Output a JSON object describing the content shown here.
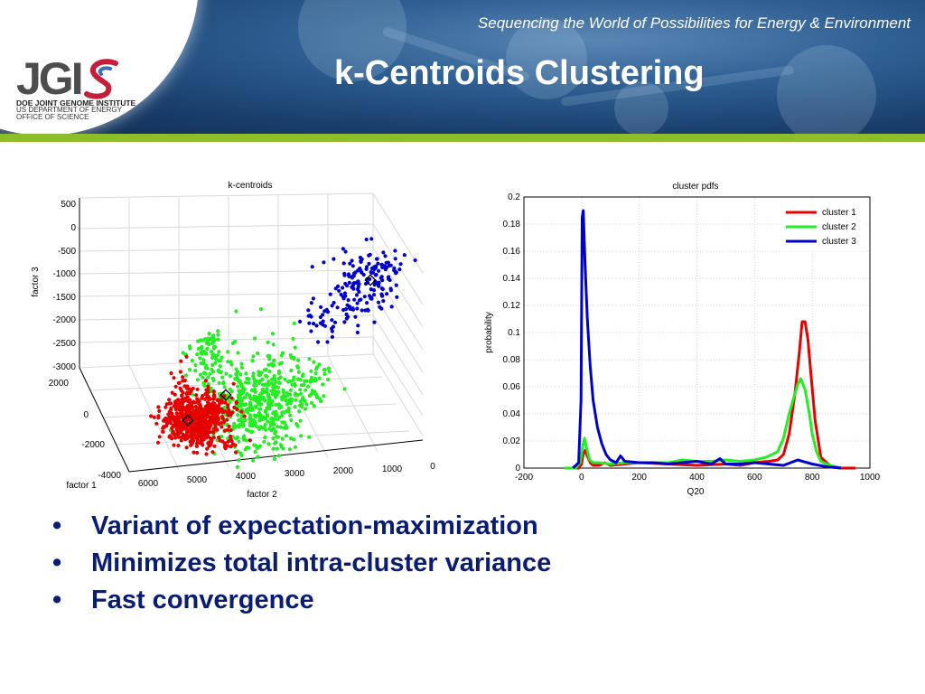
{
  "header": {
    "tagline": "Sequencing the World of Possibilities for Energy & Environment",
    "title": "k-Centroids Clustering",
    "logo_word": "JGI",
    "logo_line1": "DOE JOINT GENOME INSTITUTE",
    "logo_line2": "US DEPARTMENT OF ENERGY",
    "logo_line3": "OFFICE OF SCIENCE"
  },
  "colors": {
    "banner": "#1a3f6d",
    "green_bar": "#8dbd28",
    "bullet_text": "#0a1d72",
    "cluster_1": "#e60000",
    "cluster_2": "#22ee22",
    "cluster_3": "#0000cc"
  },
  "bullets": [
    "Variant of expectation-maximization",
    "Minimizes total intra-cluster variance",
    "Fast convergence"
  ],
  "chart_data": [
    {
      "type": "scatter",
      "title": "k-centroids",
      "xlabel": "factor 1",
      "ylabel": "factor 2",
      "zlabel": "factor 3",
      "factor1_ticks": [
        "2000",
        "0",
        "-2000",
        "-4000"
      ],
      "factor2_ticks": [
        "6000",
        "5000",
        "4000",
        "3000",
        "2000",
        "1000",
        "0"
      ],
      "factor3_ticks": [
        "500",
        "0",
        "-500",
        "-1000",
        "-1500",
        "-2000",
        "-2500",
        "-3000"
      ],
      "grid": true,
      "series": [
        {
          "name": "cluster 1",
          "color": "#e60000",
          "approx_center": {
            "factor1": -1200,
            "factor2": 5200,
            "factor3": -2900
          }
        },
        {
          "name": "cluster 2",
          "color": "#22ee22",
          "approx_center": {
            "factor1": -300,
            "factor2": 4200,
            "factor3": -2200
          }
        },
        {
          "name": "cluster 3",
          "color": "#0000cc",
          "approx_center": {
            "factor1": 1500,
            "factor2": 1200,
            "factor3": -900
          }
        }
      ]
    },
    {
      "type": "line",
      "title": "cluster pdfs",
      "xlabel": "Q20",
      "ylabel": "probability",
      "xlim": [
        -200,
        1000
      ],
      "ylim": [
        0,
        0.2
      ],
      "xticks": [
        "-200",
        "0",
        "200",
        "400",
        "600",
        "800",
        "1000"
      ],
      "yticks": [
        "0",
        "0.02",
        "0.04",
        "0.06",
        "0.08",
        "0.1",
        "0.12",
        "0.14",
        "0.16",
        "0.18",
        "0.2"
      ],
      "grid": true,
      "legend_position": "top-right",
      "series": [
        {
          "name": "cluster 1",
          "color": "#e60000",
          "x": [
            -30,
            -10,
            0,
            5,
            12,
            20,
            30,
            40,
            60,
            80,
            100,
            150,
            200,
            300,
            400,
            500,
            550,
            600,
            650,
            680,
            700,
            720,
            740,
            755,
            765,
            775,
            785,
            795,
            810,
            830,
            860,
            900,
            950
          ],
          "y": [
            0,
            0,
            0.003,
            0.01,
            0.013,
            0.009,
            0.004,
            0.002,
            0.002,
            0.004,
            0.002,
            0.003,
            0.004,
            0.003,
            0.002,
            0.003,
            0.002,
            0.004,
            0.005,
            0.006,
            0.01,
            0.025,
            0.055,
            0.085,
            0.108,
            0.108,
            0.095,
            0.07,
            0.035,
            0.008,
            0.002,
            0,
            0
          ]
        },
        {
          "name": "cluster 2",
          "color": "#22ee22",
          "x": [
            -60,
            -20,
            -5,
            3,
            10,
            18,
            28,
            40,
            60,
            100,
            150,
            200,
            300,
            350,
            400,
            450,
            500,
            550,
            600,
            640,
            660,
            680,
            700,
            720,
            740,
            750,
            760,
            775,
            790,
            800,
            815,
            830,
            860,
            900
          ],
          "y": [
            0,
            0,
            0.004,
            0.015,
            0.022,
            0.014,
            0.006,
            0.004,
            0.004,
            0.003,
            0.004,
            0.004,
            0.004,
            0.006,
            0.005,
            0.005,
            0.006,
            0.005,
            0.006,
            0.008,
            0.01,
            0.012,
            0.022,
            0.04,
            0.055,
            0.062,
            0.066,
            0.058,
            0.04,
            0.025,
            0.012,
            0.005,
            0.002,
            0
          ]
        },
        {
          "name": "cluster 3",
          "color": "#0000cc",
          "x": [
            -30,
            -10,
            -2,
            2,
            6,
            12,
            20,
            30,
            40,
            55,
            70,
            85,
            100,
            120,
            135,
            150,
            200,
            250,
            300,
            350,
            400,
            450,
            480,
            500,
            550,
            600,
            650,
            700,
            750,
            800,
            850,
            900
          ],
          "y": [
            0,
            0.004,
            0.05,
            0.185,
            0.19,
            0.15,
            0.11,
            0.075,
            0.05,
            0.03,
            0.018,
            0.01,
            0.006,
            0.004,
            0.009,
            0.005,
            0.004,
            0.004,
            0.003,
            0.004,
            0.005,
            0.003,
            0.007,
            0.003,
            0.003,
            0.004,
            0.003,
            0.002,
            0.006,
            0.003,
            0.001,
            0
          ]
        }
      ]
    }
  ]
}
